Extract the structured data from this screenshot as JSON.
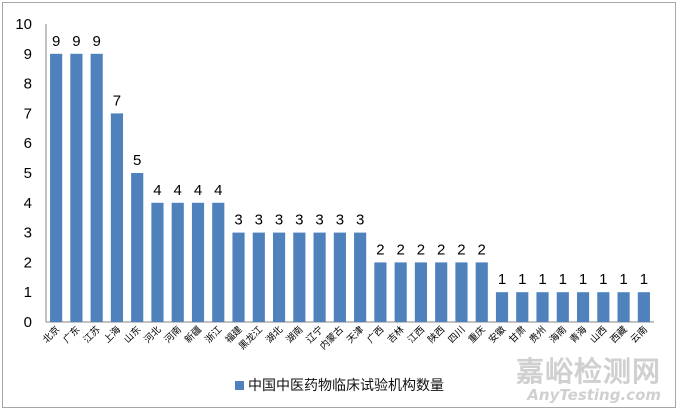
{
  "chart_data": {
    "type": "bar",
    "title": "",
    "xlabel": "",
    "ylabel": "",
    "ylim": [
      0,
      10
    ],
    "yticks": [
      0,
      1,
      2,
      3,
      4,
      5,
      6,
      7,
      8,
      9,
      10
    ],
    "grid": false,
    "legend_position": "bottom",
    "bar_color": "#4f81bd",
    "categories": [
      "北京",
      "广东",
      "江苏",
      "上海",
      "山东",
      "河北",
      "河南",
      "新疆",
      "浙江",
      "福建",
      "黑龙江",
      "湖北",
      "湖南",
      "辽宁",
      "内蒙古",
      "天津",
      "广西",
      "吉林",
      "江西",
      "陕西",
      "四川",
      "重庆",
      "安徽",
      "甘肃",
      "贵州",
      "海南",
      "青海",
      "山西",
      "西藏",
      "云南"
    ],
    "series": [
      {
        "name": "中国中医药物临床试验机构数量",
        "values": [
          9,
          9,
          9,
          7,
          5,
          4,
          4,
          4,
          4,
          3,
          3,
          3,
          3,
          3,
          3,
          3,
          2,
          2,
          2,
          2,
          2,
          2,
          1,
          1,
          1,
          1,
          1,
          1,
          1,
          1
        ]
      }
    ],
    "data_labels": true
  },
  "legend": {
    "label": "中国中医药物临床试验机构数量"
  },
  "watermark": {
    "cn": "嘉峪检测网",
    "en": "AnyTesting.com"
  }
}
